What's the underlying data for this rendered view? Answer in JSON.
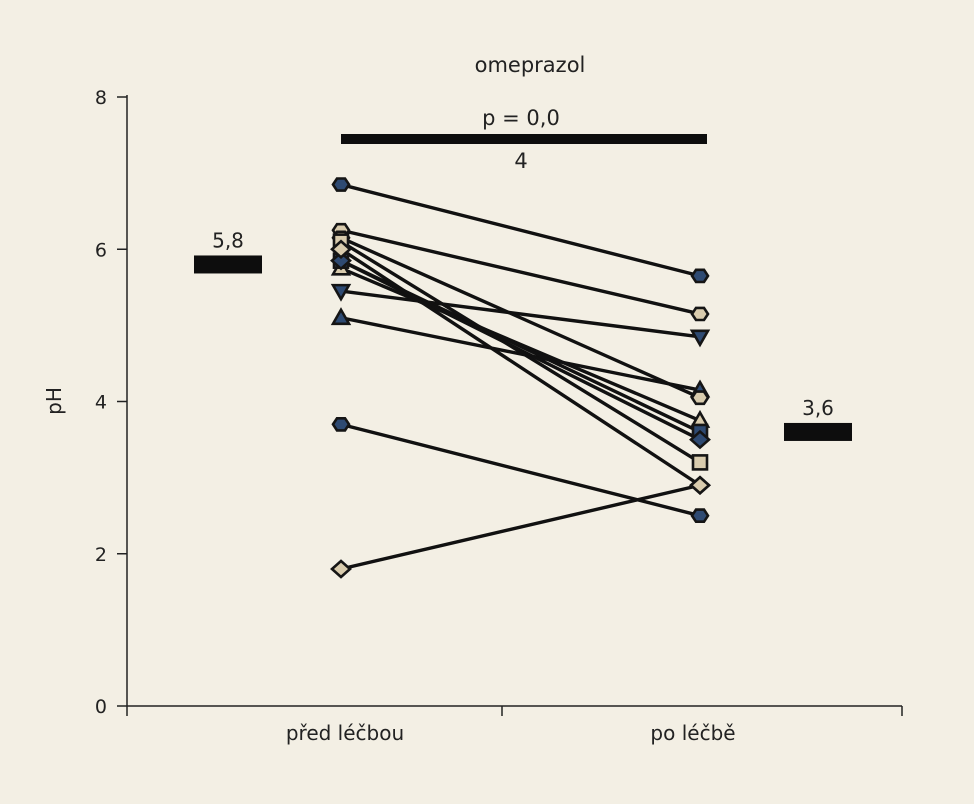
{
  "chart_data": {
    "type": "scatter",
    "title": "omeprazol",
    "categories": [
      "před léčbou",
      "po léčbě"
    ],
    "xlabel": "",
    "ylabel": "pH",
    "ylim": [
      0,
      8
    ],
    "yticks": [
      "0",
      "2",
      "4",
      "6",
      "8"
    ],
    "grid": false,
    "comparison": {
      "p_line1": "p = 0,0",
      "p_line2": "4"
    },
    "means": [
      {
        "category": "před léčbou",
        "value": 5.8,
        "label": "5,8"
      },
      {
        "category": "po léčbě",
        "value": 3.6,
        "label": "3,6"
      }
    ],
    "pairs": [
      {
        "before": 6.85,
        "after": 5.65,
        "marker_before": "hexagon",
        "marker_after": "hexagon",
        "color": "#2e4a72"
      },
      {
        "before": 6.25,
        "after": 5.15,
        "marker_before": "hexagon",
        "marker_after": "hexagon",
        "color": "#d9ccae"
      },
      {
        "before": 5.45,
        "after": 4.85,
        "marker_before": "triangle-down",
        "marker_after": "triangle-down",
        "color": "#2e4a72"
      },
      {
        "before": 5.1,
        "after": 4.15,
        "marker_before": "triangle-up",
        "marker_after": "triangle-up",
        "color": "#2e4a72"
      },
      {
        "before": 6.15,
        "after": 4.05,
        "marker_before": "hexagon",
        "marker_after": "hexagon",
        "color": "#d9ccae"
      },
      {
        "before": 5.75,
        "after": 3.75,
        "marker_before": "triangle-up",
        "marker_after": "triangle-up",
        "color": "#d9ccae"
      },
      {
        "before": 5.85,
        "after": 3.6,
        "marker_before": "square",
        "marker_after": "square",
        "color": "#2e4a72"
      },
      {
        "before": 5.85,
        "after": 3.5,
        "marker_before": "diamond",
        "marker_after": "diamond",
        "color": "#2e4a72"
      },
      {
        "before": 6.1,
        "after": 3.2,
        "marker_before": "square",
        "marker_after": "square",
        "color": "#d9ccae"
      },
      {
        "before": 6.0,
        "after": 2.9,
        "marker_before": "diamond",
        "marker_after": "diamond",
        "color": "#d9ccae"
      },
      {
        "before": 3.7,
        "after": 2.5,
        "marker_before": "hexagon",
        "marker_after": "hexagon",
        "color": "#2e4a72"
      },
      {
        "before": 1.8,
        "after": 2.9,
        "marker_before": "diamond",
        "marker_after": "diamond",
        "color": "#d9ccae"
      }
    ]
  }
}
